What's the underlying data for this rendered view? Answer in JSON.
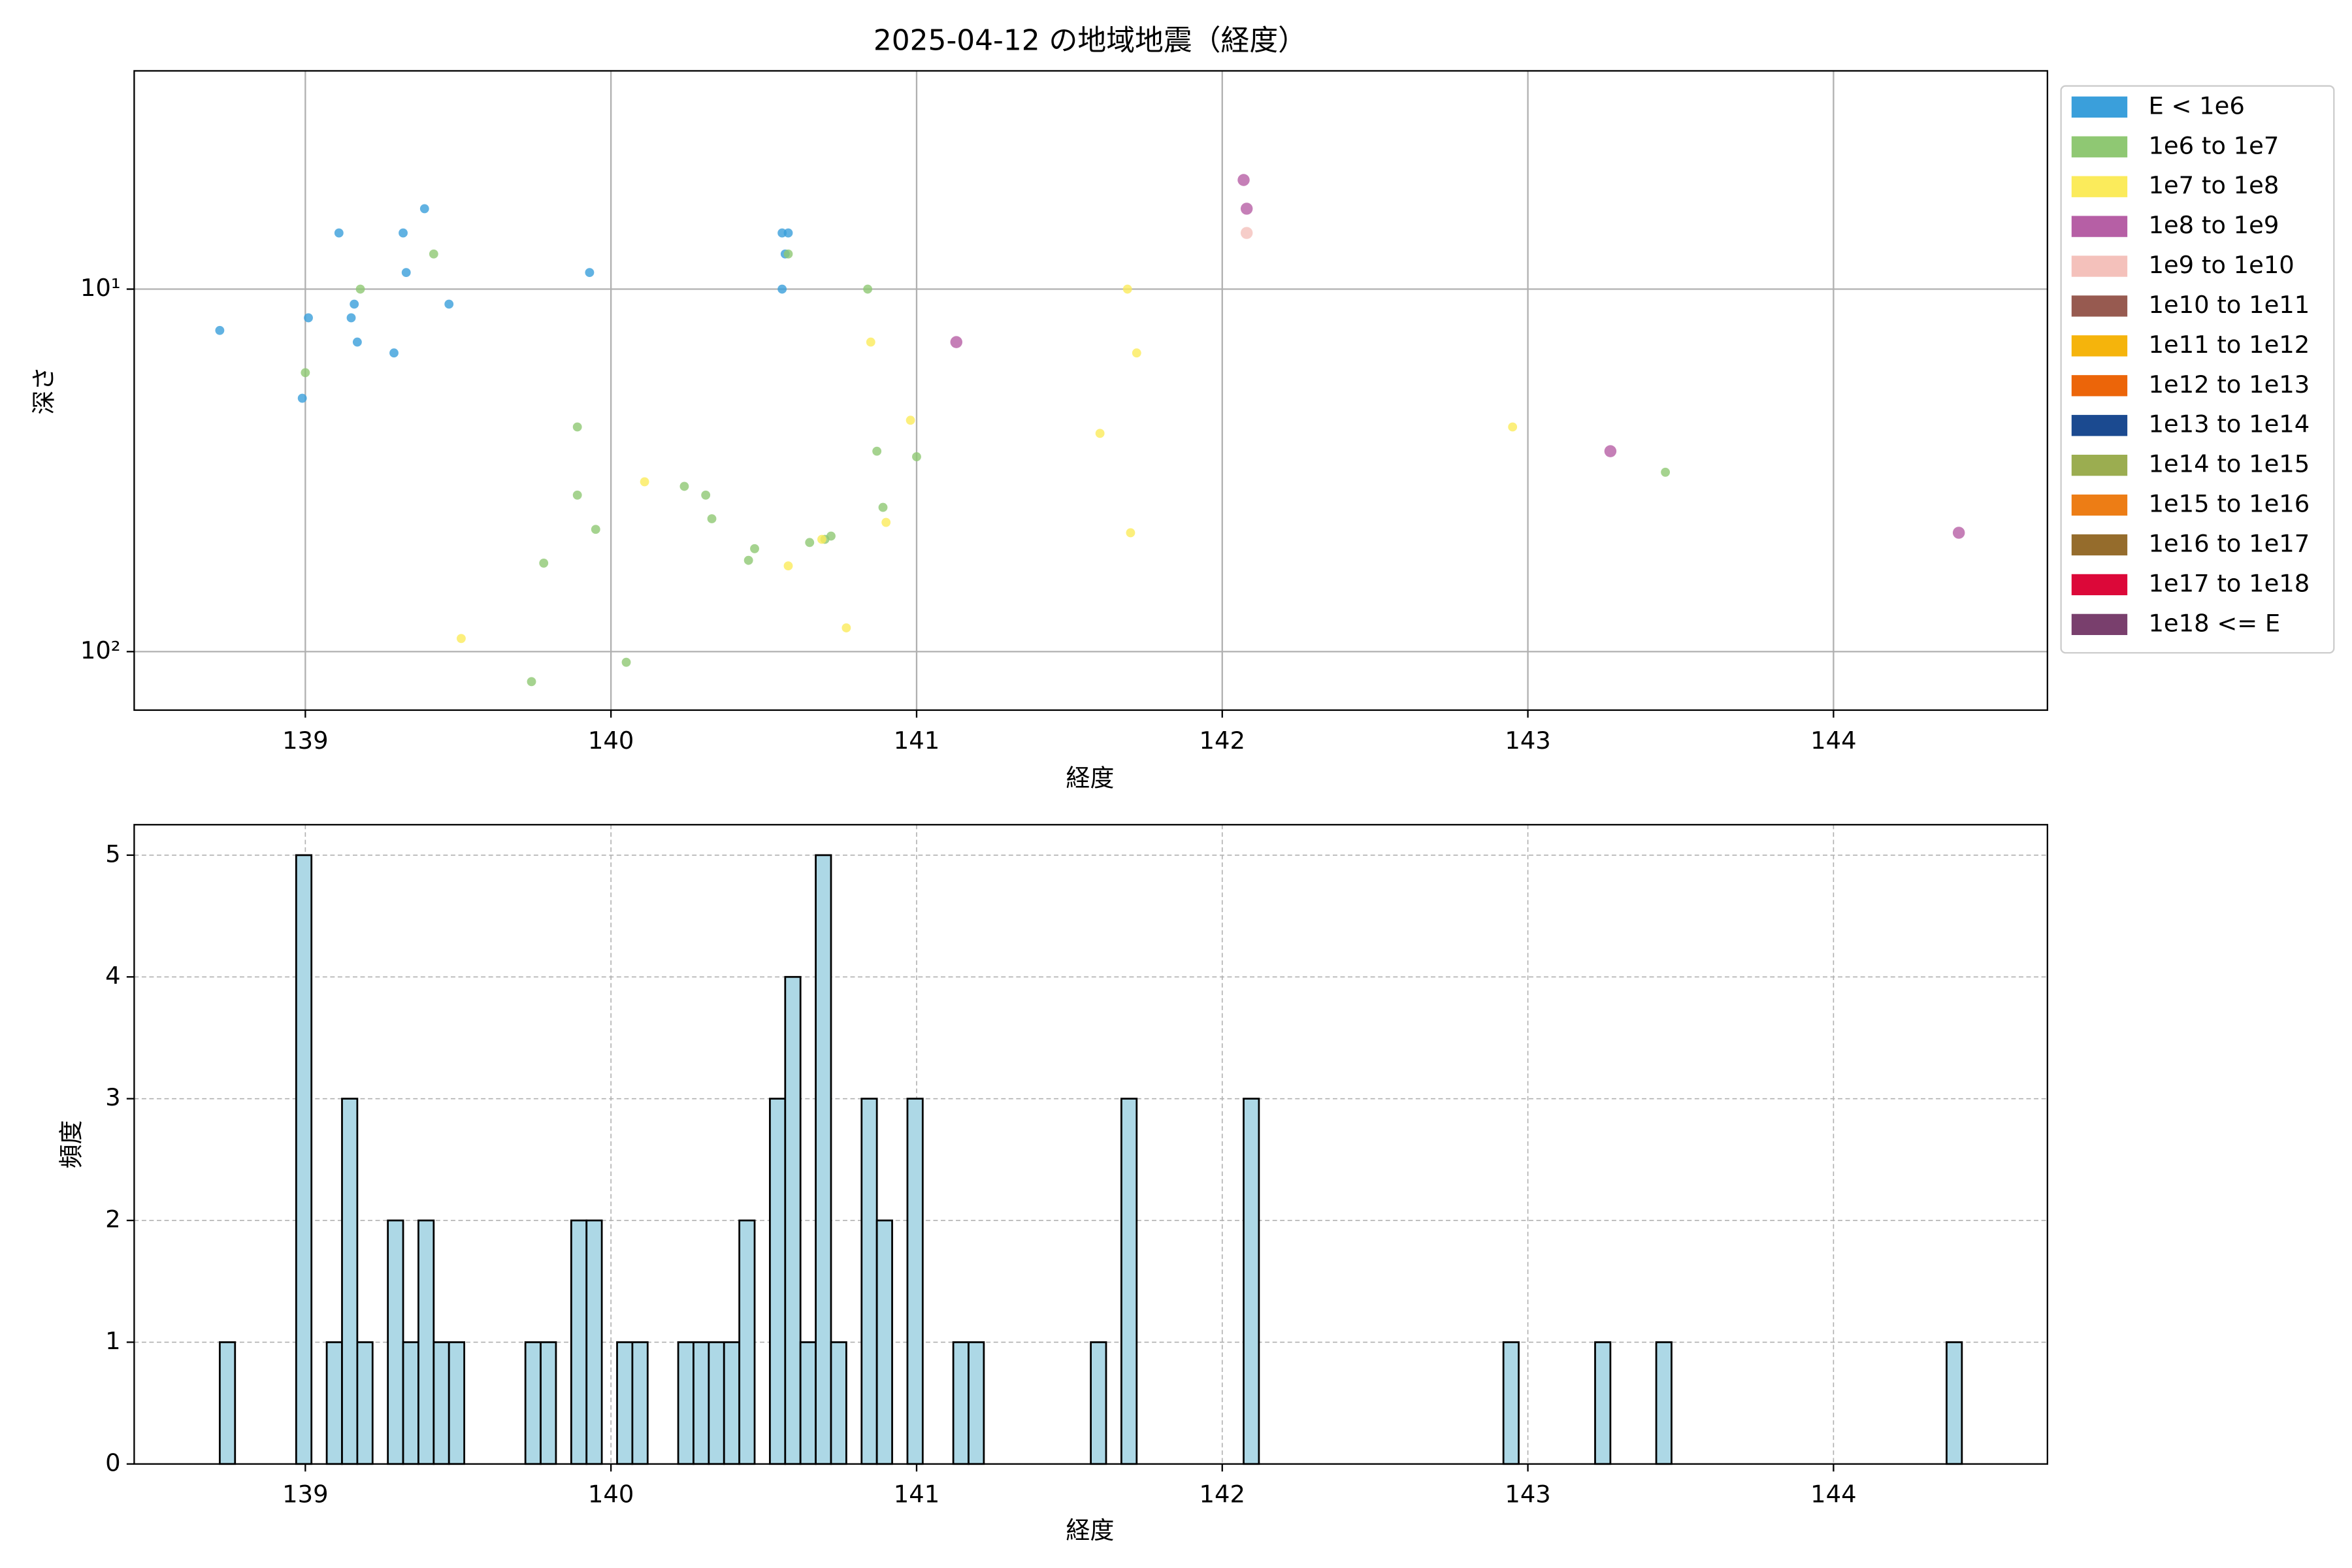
{
  "chart_data": [
    {
      "type": "scatter",
      "title": "2025-04-12 の地域地震（経度）",
      "x_label": "経度",
      "y_label": "深さ",
      "xlim": [
        138.44,
        144.7
      ],
      "xticks": [
        139,
        140,
        141,
        142,
        143,
        144
      ],
      "ylim": [
        145,
        2.5
      ],
      "log_y": true,
      "yticks": [
        {
          "value": 10,
          "label": "10¹"
        },
        {
          "value": 100,
          "label": "10²"
        }
      ],
      "grid": true,
      "legend": "outside-right",
      "series": [
        {
          "name": "E < 1e6",
          "color": "#3a9fdb",
          "x": [
            138.72,
            138.99,
            139.01,
            139.11,
            139.15,
            139.16,
            139.17,
            139.29,
            139.32,
            139.33,
            139.39,
            139.47,
            139.93,
            140.56,
            140.58,
            140.57,
            140.56
          ],
          "y": [
            13,
            20,
            12,
            7,
            12,
            11,
            14,
            15,
            7,
            9,
            6,
            11,
            9,
            7,
            7,
            8,
            10
          ]
        },
        {
          "name": "1e6 to 1e7",
          "color": "#8fc873",
          "x": [
            139.0,
            139.18,
            139.42,
            139.89,
            139.89,
            139.95,
            139.78,
            140.05,
            139.74,
            140.24,
            140.31,
            140.33,
            140.45,
            140.47,
            140.58,
            140.65,
            140.7,
            140.72,
            140.84,
            140.87,
            140.89,
            141.0,
            143.45
          ],
          "y": [
            17,
            10,
            8,
            24,
            37,
            46,
            57,
            107,
            121,
            35,
            37,
            43,
            56,
            52,
            8,
            50,
            49,
            48,
            10,
            28,
            40,
            29,
            32
          ]
        },
        {
          "name": "1e7 to 1e8",
          "color": "#fbeb5b",
          "x": [
            139.51,
            140.11,
            140.58,
            140.69,
            140.77,
            140.85,
            140.9,
            140.98,
            141.6,
            141.69,
            141.72,
            141.7,
            142.95
          ],
          "y": [
            92,
            34,
            58,
            49,
            86,
            14,
            44,
            23,
            25,
            10,
            15,
            47,
            24
          ]
        },
        {
          "name": "1e8 to 1e9",
          "color": "#b65fa5",
          "x": [
            141.13,
            142.07,
            142.08,
            143.27,
            144.41
          ],
          "y": [
            14,
            5,
            6,
            28,
            47
          ]
        },
        {
          "name": "1e9 to 1e10",
          "color": "#f4c1bb",
          "x": [
            142.08
          ],
          "y": [
            7
          ]
        },
        {
          "name": "1e10 to 1e11",
          "color": "#975a50",
          "x": [],
          "y": []
        },
        {
          "name": "1e11 to 1e12",
          "color": "#f5b40c",
          "x": [],
          "y": []
        },
        {
          "name": "1e12 to 1e13",
          "color": "#ec6509",
          "x": [],
          "y": []
        },
        {
          "name": "1e13 to 1e14",
          "color": "#1b4a90",
          "x": [],
          "y": []
        },
        {
          "name": "1e14 to 1e15",
          "color": "#9bad50",
          "x": [],
          "y": []
        },
        {
          "name": "1e15 to 1e16",
          "color": "#ed7d15",
          "x": [],
          "y": []
        },
        {
          "name": "1e16 to 1e17",
          "color": "#956c2c",
          "x": [],
          "y": []
        },
        {
          "name": "1e17 to 1e18",
          "color": "#dc0839",
          "x": [],
          "y": []
        },
        {
          "name": "1e18 <= E",
          "color": "#793f6d",
          "x": [],
          "y": []
        }
      ]
    },
    {
      "type": "histogram",
      "x_label": "経度",
      "y_label": "頻度",
      "color": "#add8e6",
      "edgecolor": "#000000",
      "xlim": [
        138.44,
        144.7
      ],
      "xticks": [
        139,
        140,
        141,
        142,
        143,
        144
      ],
      "ylim": [
        0,
        5.25
      ],
      "yticks": [
        0,
        1,
        2,
        3,
        4,
        5
      ],
      "grid": true,
      "grid_style": "dashed",
      "bins": [
        138.72,
        138.77,
        138.82,
        138.87,
        138.92,
        138.97,
        139.02,
        139.07,
        139.12,
        139.17,
        139.22,
        139.27,
        139.32,
        139.37,
        139.42,
        139.47,
        139.52,
        139.57,
        139.62,
        139.67,
        139.72,
        139.77,
        139.82,
        139.87,
        139.92,
        139.97,
        140.02,
        140.07,
        140.12,
        140.17,
        140.22,
        140.27,
        140.32,
        140.37,
        140.42,
        140.47,
        140.52,
        140.57,
        140.62,
        140.67,
        140.72,
        140.77,
        140.82,
        140.87,
        140.92,
        140.97,
        141.02,
        141.07,
        141.12,
        141.17,
        141.22,
        141.27,
        141.32,
        141.37,
        141.42,
        141.47,
        141.52,
        141.57,
        141.62,
        141.67,
        141.72,
        141.77,
        141.82,
        141.87,
        141.92,
        141.97,
        142.02,
        142.07,
        142.12,
        142.17,
        142.22,
        142.27,
        142.32,
        142.37,
        142.42,
        142.47,
        142.52,
        142.57,
        142.62,
        142.67,
        142.72,
        142.77,
        142.82,
        142.87,
        142.92,
        142.97,
        143.02,
        143.07,
        143.12,
        143.17,
        143.22,
        143.27,
        143.32,
        143.37,
        143.42,
        143.47,
        143.52,
        143.57,
        143.62,
        143.67,
        143.72,
        143.77,
        143.82,
        143.87,
        143.92,
        143.97,
        144.02,
        144.07,
        144.12,
        144.17,
        144.22,
        144.27,
        144.32,
        144.37,
        144.42
      ],
      "values": [
        1,
        0,
        0,
        0,
        0,
        5,
        0,
        1,
        3,
        1,
        0,
        2,
        1,
        2,
        1,
        1,
        0,
        0,
        0,
        0,
        1,
        1,
        0,
        2,
        2,
        0,
        1,
        1,
        0,
        0,
        1,
        1,
        1,
        1,
        2,
        0,
        3,
        4,
        1,
        5,
        1,
        0,
        3,
        2,
        0,
        3,
        0,
        0,
        1,
        1,
        0,
        0,
        0,
        0,
        0,
        0,
        0,
        1,
        0,
        3,
        0,
        0,
        0,
        0,
        0,
        0,
        0,
        3,
        0,
        0,
        0,
        0,
        0,
        0,
        0,
        0,
        0,
        0,
        0,
        0,
        0,
        0,
        0,
        0,
        1,
        0,
        0,
        0,
        0,
        0,
        1,
        0,
        0,
        0,
        1,
        0,
        0,
        0,
        0,
        0,
        0,
        0,
        0,
        0,
        0,
        0,
        0,
        0,
        0,
        0,
        0,
        0,
        0,
        1
      ]
    }
  ]
}
